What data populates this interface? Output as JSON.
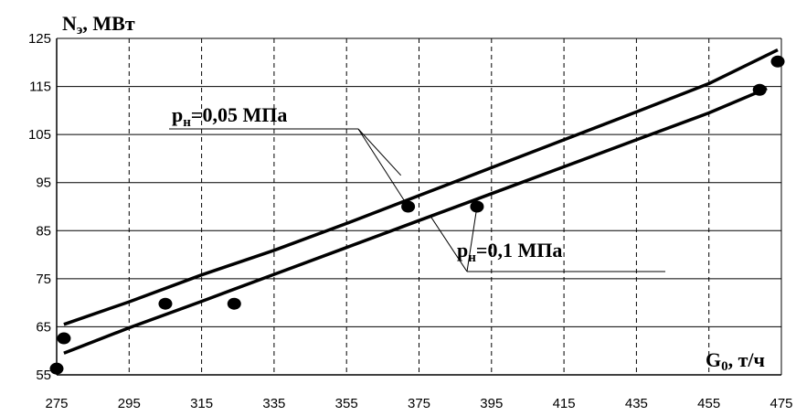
{
  "chart_data": {
    "type": "line",
    "xlabel_main": "G",
    "xlabel_sub": "0",
    "xlabel_rest": ", т/ч",
    "ylabel_main": "N",
    "ylabel_sub": "э",
    "ylabel_rest": ", МВт",
    "xlim": [
      275,
      475
    ],
    "ylim": [
      55,
      125
    ],
    "x_ticks": [
      "275",
      "295",
      "315",
      "335",
      "355",
      "375",
      "395",
      "415",
      "435",
      "455",
      "475"
    ],
    "y_ticks": [
      "125",
      "115",
      "105",
      "95",
      "85",
      "75",
      "65",
      "55"
    ],
    "grid": "vertical dashed at x ticks; horizontal solid at y ticks",
    "series": [
      {
        "label": "pн=0,05 МПа",
        "x": [
          277,
          295,
          315,
          335,
          355,
          375,
          395,
          415,
          435,
          455,
          474
        ],
        "y": [
          65.5,
          70.2,
          75.8,
          80.9,
          86.5,
          92.3,
          98.1,
          103.9,
          109.7,
          115.6,
          122.6
        ]
      },
      {
        "label": "pн=0,1 МПа",
        "x": [
          277,
          295,
          315,
          335,
          355,
          375,
          395,
          415,
          435,
          455,
          471
        ],
        "y": [
          59.5,
          64.8,
          70.3,
          75.9,
          81.5,
          87.1,
          92.7,
          98.3,
          103.9,
          109.5,
          114.6
        ]
      }
    ],
    "points": [
      {
        "x": 275,
        "y": 56.3
      },
      {
        "x": 277,
        "y": 62.6
      },
      {
        "x": 305,
        "y": 69.8
      },
      {
        "x": 324,
        "y": 69.8
      },
      {
        "x": 372,
        "y": 90
      },
      {
        "x": 391,
        "y": 90
      },
      {
        "x": 469,
        "y": 114.3
      },
      {
        "x": 474,
        "y": 120.2
      }
    ],
    "annotations": [
      {
        "main": "p",
        "sub": "н",
        "rest": "=0,05 МПа"
      },
      {
        "main": "p",
        "sub": "н",
        "rest": "=0,1 МПа"
      }
    ]
  }
}
